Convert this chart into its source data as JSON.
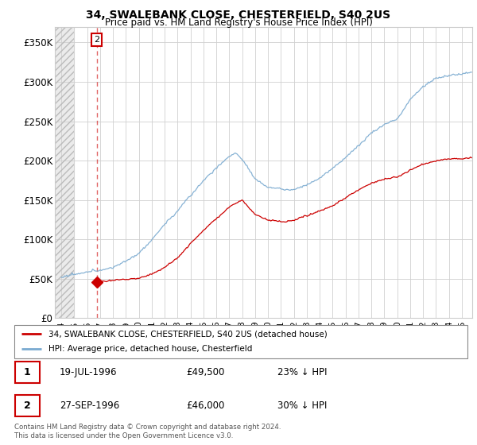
{
  "title_line1": "34, SWALEBANK CLOSE, CHESTERFIELD, S40 2US",
  "title_line2": "Price paid vs. HM Land Registry's House Price Index (HPI)",
  "legend_label_red": "34, SWALEBANK CLOSE, CHESTERFIELD, S40 2US (detached house)",
  "legend_label_blue": "HPI: Average price, detached house, Chesterfield",
  "footer": "Contains HM Land Registry data © Crown copyright and database right 2024.\nThis data is licensed under the Open Government Licence v3.0.",
  "table_rows": [
    {
      "num": "1",
      "date": "19-JUL-1996",
      "price": "£49,500",
      "note": "23% ↓ HPI"
    },
    {
      "num": "2",
      "date": "27-SEP-1996",
      "price": "£46,000",
      "note": "30% ↓ HPI"
    }
  ],
  "sale1_x": 1996.54,
  "sale2_x": 1996.74,
  "sale1_price": 49500,
  "sale2_price": 46000,
  "red_color": "#cc0000",
  "blue_color": "#7aaad0",
  "ylim_min": 0,
  "ylim_max": 370000,
  "xlim_min": 1993.5,
  "xlim_max": 2025.8,
  "yticks": [
    0,
    50000,
    100000,
    150000,
    200000,
    250000,
    300000,
    350000
  ],
  "ytick_labels": [
    "£0",
    "£50K",
    "£100K",
    "£150K",
    "£200K",
    "£250K",
    "£300K",
    "£350K"
  ],
  "xticks": [
    1994,
    1995,
    1996,
    1997,
    1998,
    1999,
    2000,
    2001,
    2002,
    2003,
    2004,
    2005,
    2006,
    2007,
    2008,
    2009,
    2010,
    2011,
    2012,
    2013,
    2014,
    2015,
    2016,
    2017,
    2018,
    2019,
    2020,
    2021,
    2022,
    2023,
    2024,
    2025
  ]
}
